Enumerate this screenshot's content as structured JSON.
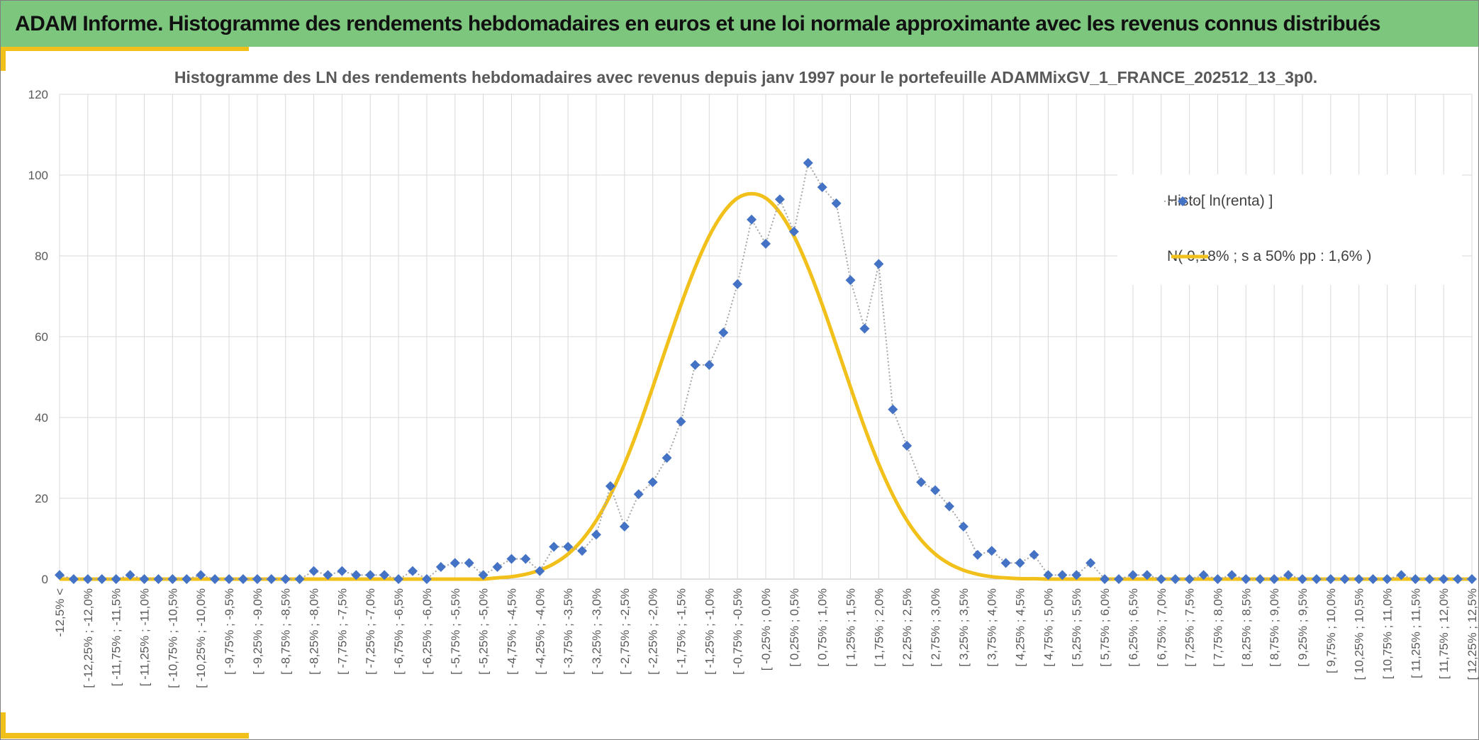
{
  "header": {
    "title": "ADAM Informe. Histogramme des rendements hebdomadaires en euros et une loi normale approximante avec les revenus connus distribués"
  },
  "colors": {
    "banner": "#7dc67e",
    "accent": "#f2c01b",
    "histo_marker": "#4472c4",
    "histo_line": "#a6a6a6",
    "normal_curve": "#f2c01b"
  },
  "chart_data": {
    "type": "line",
    "title": "Histogramme des LN des rendements hebdomadaires avec revenus depuis janv 1997 pour le portefeuille ADAMMixGV_1_FRANCE_202512_13_3p0.",
    "xlabel": "",
    "ylabel": "",
    "ylim": [
      0,
      120
    ],
    "yticks": [
      0,
      20,
      40,
      60,
      80,
      100,
      120
    ],
    "grid": true,
    "legend_position": "right",
    "categories": [
      "-12,5% <",
      "[ -12,5% ; -12,25%",
      "[ -12,25% ; -12,0%",
      "[ -12,0% ; -11,75%",
      "[ -11,75% ; -11,5%",
      "[ -11,5% ; -11,25%",
      "[ -11,25% ; -11,0%",
      "[ -11,0% ; -10,75%",
      "[ -10,75% ; -10,5%",
      "[ -10,5% ; -10,25%",
      "[ -10,25% ; -10,0%",
      "[ -10,0% ; -9,75%",
      "[ -9,75% ; -9,5%",
      "[ -9,5% ; -9,25%",
      "[ -9,25% ; -9,0%",
      "[ -9,0% ; -8,75%",
      "[ -8,75% ; -8,5%",
      "[ -8,5% ; -8,25%",
      "[ -8,25% ; -8,0%",
      "[ -8,0% ; -7,75%",
      "[ -7,75% ; -7,5%",
      "[ -7,5% ; -7,25%",
      "[ -7,25% ; -7,0%",
      "[ -7,0% ; -6,75%",
      "[ -6,75% ; -6,5%",
      "[ -6,5% ; -6,25%",
      "[ -6,25% ; -6,0%",
      "[ -6,0% ; -5,75%",
      "[ -5,75% ; -5,5%",
      "[ -5,5% ; -5,25%",
      "[ -5,25% ; -5,0%",
      "[ -5,0% ; -4,75%",
      "[ -4,75% ; -4,5%",
      "[ -4,5% ; -4,25%",
      "[ -4,25% ; -4,0%",
      "[ -4,0% ; -3,75%",
      "[ -3,75% ; -3,5%",
      "[ -3,5% ; -3,25%",
      "[ -3,25% ; -3,0%",
      "[ -3,0% ; -2,75%",
      "[ -2,75% ; -2,5%",
      "[ -2,5% ; -2,25%",
      "[ -2,25% ; -2,0%",
      "[ -2,0% ; -1,75%",
      "[ -1,75% ; -1,5%",
      "[ -1,5% ; -1,25%",
      "[ -1,25% ; -1,0%",
      "[ -1,0% ; -0,75%",
      "[ -0,75% ; -0,5%",
      "[ -0,5% ; -0,25%",
      "[ -0,25% ; 0,0%",
      "[ 0,0% ; 0,25%",
      "[ 0,25% ; 0,5%",
      "[ 0,5% ; 0,75%",
      "[ 0,75% ; 1,0%",
      "[ 1,0% ; 1,25%",
      "[ 1,25% ; 1,5%",
      "[ 1,5% ; 1,75%",
      "[ 1,75% ; 2,0%",
      "[ 2,0% ; 2,25%",
      "[ 2,25% ; 2,5%",
      "[ 2,5% ; 2,75%",
      "[ 2,75% ; 3,0%",
      "[ 3,0% ; 3,25%",
      "[ 3,25% ; 3,5%",
      "[ 3,5% ; 3,75%",
      "[ 3,75% ; 4,0%",
      "[ 4,0% ; 4,25%",
      "[ 4,25% ; 4,5%",
      "[ 4,5% ; 4,75%",
      "[ 4,75% ; 5,0%",
      "[ 5,0% ; 5,25%",
      "[ 5,25% ; 5,5%",
      "[ 5,5% ; 5,75%",
      "[ 5,75% ; 6,0%",
      "[ 6,0% ; 6,25%",
      "[ 6,25% ; 6,5%",
      "[ 6,5% ; 6,75%",
      "[ 6,75% ; 7,0%",
      "[ 7,0% ; 7,25%",
      "[ 7,25% ; 7,5%",
      "[ 7,5% ; 7,75%",
      "[ 7,75% ; 8,0%",
      "[ 8,0% ; 8,25%",
      "[ 8,25% ; 8,5%",
      "[ 8,5% ; 8,75%",
      "[ 8,75% ; 9,0%",
      "[ 9,0% ; 9,25%",
      "[ 9,25% ; 9,5%",
      "[ 9,5% ; 9,75%",
      "[ 9,75% ; 10,0%",
      "[ 10,0% ; 10,25%",
      "[ 10,25% ; 10,5%",
      "[ 10,5% ; 10,75%",
      "[ 10,75% ; 11,0%",
      "[ 11,0% ; 11,25%",
      "[ 11,25% ; 11,5%",
      "[ 11,5% ; 11,75%",
      "[ 11,75% ; 12,0%",
      "[ 12,0% ; 12,25%",
      "[ 12,25% ; 12,5%"
    ],
    "visible_tick_labels": [
      "-12,5% <",
      "[ -12,25% ; -12,0%",
      "[ -11,75% ; -11,5%",
      "[ -11,25% ; -11,0%",
      "[ -10,75% ; -10,5%",
      "[ -10,25% ; -10,0%",
      "[ -9,75% ; -9,5%",
      "[ -9,25% ; -9,0%",
      "[ -8,75% ; -8,5%",
      "[ -8,25% ; -8,0%",
      "[ -7,75% ; -7,5%",
      "[ -7,25% ; -7,0%",
      "[ -6,75% ; -6,5%",
      "[ -6,25% ; -6,0%",
      "[ -5,75% ; -5,5%",
      "[ -5,25% ; -5,0%",
      "[ -4,75% ; -4,5%",
      "[ -4,25% ; -4,0%",
      "[ -3,75% ; -3,5%",
      "[ -3,25% ; -3,0%",
      "[ -2,75% ; -2,5%",
      "[ -2,25% ; -2,0%",
      "[ -1,75% ; -1,5%",
      "[ -1,25% ; -1,0%",
      "[ -0,75% ; -0,5%",
      "[ -0,25% ; 0,0%",
      "[ 0,25% ; 0,5%",
      "[ 0,75% ; 1,0%",
      "[ 1,25% ; 1,5%",
      "[ 1,75% ; 2,0%",
      "[ 2,25% ; 2,5%",
      "[ 2,75% ; 3,0%",
      "[ 3,25% ; 3,5%",
      "[ 3,75% ; 4,0%",
      "[ 4,25% ; 4,5%",
      "[ 4,75% ; 5,0%",
      "[ 5,25% ; 5,5%",
      "[ 5,75% ; 6,0%",
      "[ 6,25% ; 6,5%",
      "[ 6,75% ; 7,0%",
      "[ 7,25% ; 7,5%",
      "[ 7,75% ; 8,0%",
      "[ 8,25% ; 8,5%",
      "[ 8,75% ; 9,0%",
      "[ 9,25% ; 9,5%",
      "[ 9,75% ; 10,0%",
      "[ 10,25% ; 10,5%",
      "[ 10,75% ; 11,0%",
      "[ 11,25% ; 11,5%",
      "[ 11,75% ; 12,0%",
      "[ 12,25% ; 12,5%"
    ],
    "series": [
      {
        "name": "Histo[ ln(renta) ]",
        "style": "dotted line with diamond markers",
        "values": [
          1,
          0,
          0,
          0,
          0,
          1,
          0,
          0,
          0,
          0,
          1,
          0,
          0,
          0,
          0,
          0,
          0,
          0,
          2,
          1,
          2,
          1,
          1,
          1,
          0,
          2,
          0,
          3,
          4,
          4,
          1,
          3,
          5,
          5,
          2,
          8,
          8,
          7,
          11,
          23,
          13,
          21,
          24,
          30,
          39,
          53,
          53,
          61,
          73,
          89,
          83,
          94,
          86,
          103,
          97,
          93,
          74,
          62,
          78,
          42,
          33,
          24,
          22,
          18,
          13,
          6,
          7,
          4,
          4,
          6,
          1,
          1,
          1,
          4,
          0,
          0,
          1,
          1,
          0,
          0,
          0,
          1,
          0,
          1,
          0,
          0,
          0,
          1,
          0,
          0,
          0,
          0,
          0,
          0,
          0,
          1,
          0,
          0,
          0,
          0,
          0
        ]
      },
      {
        "name": "N( 0,18% ; s a 50% pp : 1,6% )",
        "style": "solid smooth line",
        "values": [
          0,
          0,
          0,
          0,
          0,
          0,
          0,
          0,
          0,
          0,
          0,
          0,
          0,
          0,
          0,
          0,
          0,
          0,
          0,
          0,
          0,
          0,
          0,
          0,
          0,
          0,
          0,
          0,
          0,
          0,
          0,
          0.3,
          0.6,
          1.2,
          2.2,
          3.8,
          6.2,
          9.7,
          14.5,
          20.8,
          28.5,
          37.5,
          47.5,
          57.8,
          67.9,
          77.1,
          84.9,
          90.7,
          94.3,
          95.4,
          94.3,
          90.7,
          84.9,
          77.1,
          67.9,
          57.8,
          47.5,
          37.5,
          28.5,
          20.8,
          14.5,
          9.7,
          6.2,
          3.8,
          2.2,
          1.2,
          0.6,
          0.3,
          0.1,
          0.1,
          0,
          0,
          0,
          0,
          0,
          0,
          0,
          0,
          0,
          0,
          0,
          0,
          0,
          0,
          0,
          0,
          0,
          0,
          0,
          0,
          0,
          0,
          0,
          0,
          0,
          0,
          0,
          0,
          0,
          0,
          0
        ]
      }
    ]
  }
}
